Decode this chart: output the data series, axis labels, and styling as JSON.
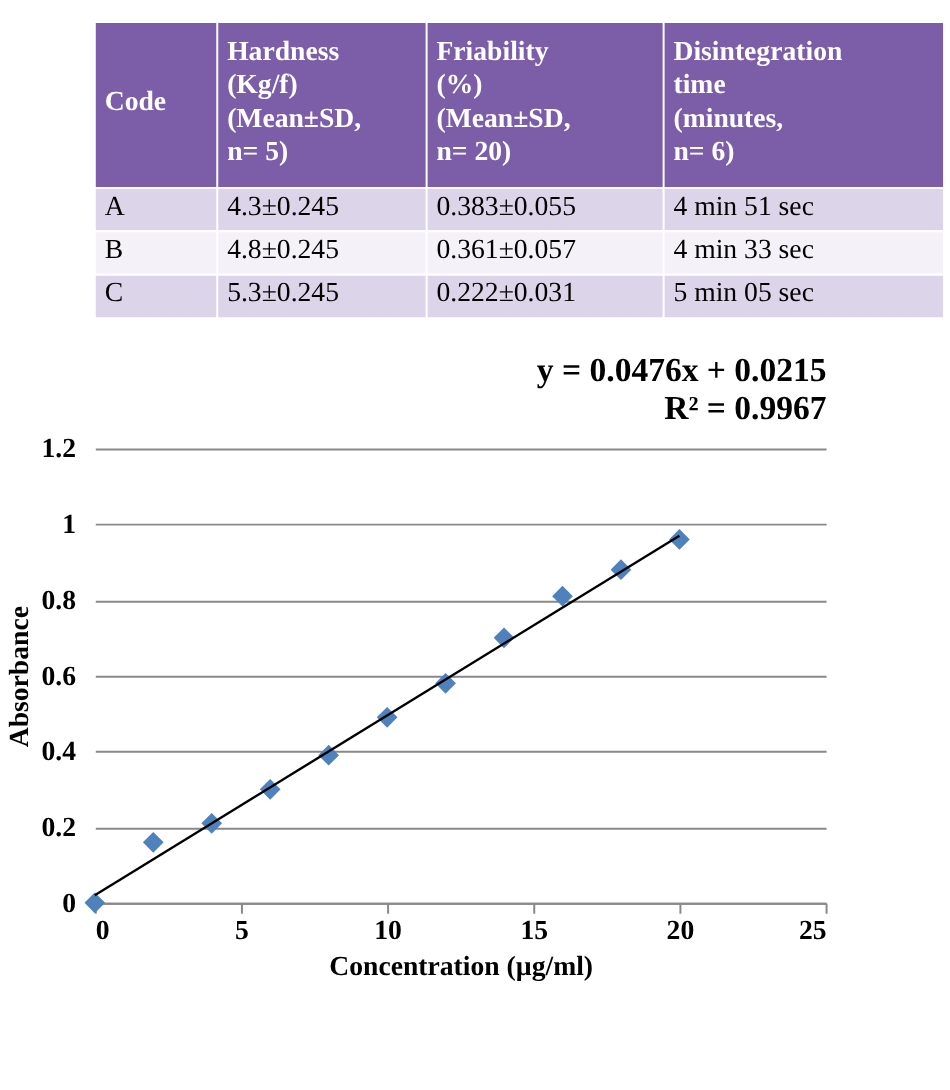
{
  "chart_data": [
    {
      "type": "other",
      "colors": [
        "#7b5ea7",
        "#dcd4e9",
        "#f4f1f8",
        "#dcd4e9"
      ],
      "annotations": [
        "Code",
        "Hardness (Kg/f) (Mean±SD, n= 5)",
        "Friability (%) (Mean±SD, n= 20)",
        "Disintegration time (minutes, n= 6)",
        "A",
        "4.3±0.245",
        "0.383±0.055",
        "4 min 51 sec",
        "B",
        "4.8±0.245",
        "0.361±0.057",
        "4 min 33 sec",
        "C",
        "5.3±0.245",
        "0.222±0.031",
        "5 min 05 sec"
      ]
    },
    {
      "type": "scatter",
      "xlabel": "Concentration (µg/ml)",
      "ylabel": "Absorbance",
      "annotations": [
        "y = 0.0476x + 0.0215",
        "R² = 0.9967"
      ],
      "xlim": [
        0,
        25
      ],
      "xticks": [
        0,
        5,
        10,
        15,
        20,
        25
      ],
      "ylim": [
        0,
        1.2
      ],
      "yticks": [
        0,
        0.2,
        0.4,
        0.6,
        0.8,
        1,
        1.2
      ],
      "grid": "y",
      "marker": "diamond",
      "series": [
        {
          "type": "scatter",
          "color": "#4f81bd",
          "x": [
            0,
            2,
            4,
            6,
            8,
            10,
            12,
            14,
            16,
            18,
            20
          ],
          "values": [
            0,
            0.16,
            0.21,
            0.3,
            0.39,
            0.49,
            0.58,
            0.7,
            0.81,
            0.88,
            0.96
          ]
        },
        {
          "type": "line",
          "color": "#000000",
          "marker": "none",
          "x": [
            0,
            20
          ],
          "values": [
            0.02,
            0.97
          ]
        }
      ]
    }
  ]
}
